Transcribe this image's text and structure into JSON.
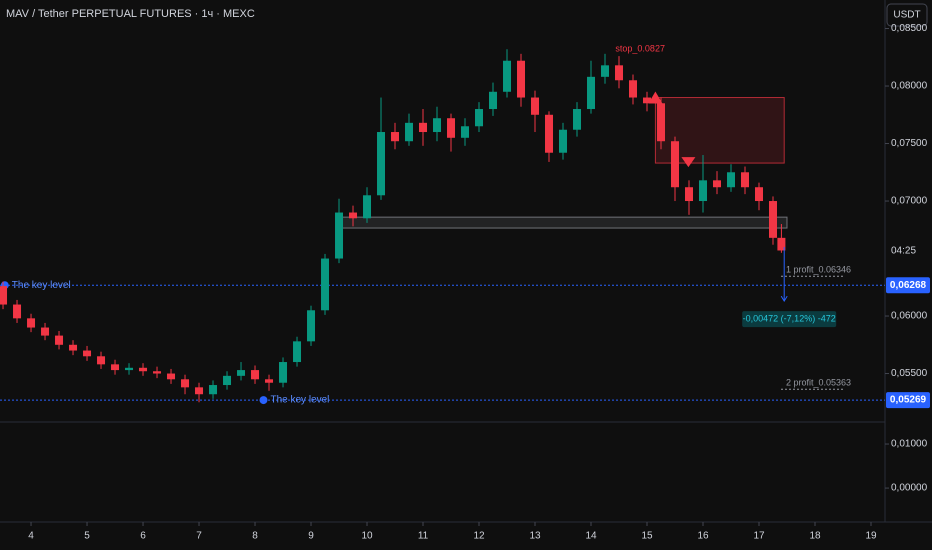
{
  "chart_data": {
    "type": "candlestick",
    "title": "MAV / Tether PERPETUAL FUTURES · 1ч · MEXC",
    "currency_button": "USDT",
    "countdown": "04:25",
    "up_color": "#089981",
    "down_color": "#f23645",
    "x": [
      3.5,
      3.75,
      4,
      4.25,
      4.5,
      4.75,
      5,
      5.25,
      5.5,
      5.75,
      6,
      6.25,
      6.5,
      6.75,
      7,
      7.25,
      7.5,
      7.75,
      8,
      8.25,
      8.5,
      8.75,
      9,
      9.25,
      9.5,
      9.75,
      10,
      10.25,
      10.5,
      10.75,
      11,
      11.25,
      11.5,
      11.75,
      12,
      12.25,
      12.5,
      12.75,
      13,
      13.25,
      13.5,
      13.75,
      14,
      14.25,
      14.5,
      14.75,
      15,
      15.25,
      15.5,
      15.75,
      16,
      16.25,
      16.5,
      16.75,
      17,
      17.25,
      17.4
    ],
    "open": [
      0.0626,
      0.061,
      0.0598,
      0.059,
      0.0583,
      0.0575,
      0.057,
      0.0565,
      0.0558,
      0.0553,
      0.0555,
      0.0552,
      0.055,
      0.0545,
      0.0538,
      0.0532,
      0.054,
      0.0548,
      0.0553,
      0.0545,
      0.0542,
      0.056,
      0.0578,
      0.0605,
      0.065,
      0.069,
      0.0685,
      0.0705,
      0.076,
      0.0752,
      0.0768,
      0.076,
      0.0772,
      0.0755,
      0.0765,
      0.078,
      0.0795,
      0.0822,
      0.079,
      0.0775,
      0.0742,
      0.0762,
      0.078,
      0.0808,
      0.0818,
      0.0805,
      0.079,
      0.0785,
      0.0752,
      0.0712,
      0.07,
      0.0718,
      0.0712,
      0.0725,
      0.0712,
      0.07,
      0.0668
    ],
    "high": [
      0.063,
      0.0614,
      0.0602,
      0.0594,
      0.0587,
      0.0579,
      0.0574,
      0.0569,
      0.0562,
      0.0559,
      0.0559,
      0.0556,
      0.0554,
      0.0549,
      0.0542,
      0.0544,
      0.0552,
      0.056,
      0.0557,
      0.0549,
      0.0564,
      0.0582,
      0.0609,
      0.0654,
      0.0702,
      0.0696,
      0.0712,
      0.079,
      0.0768,
      0.0776,
      0.078,
      0.0782,
      0.0776,
      0.0772,
      0.0786,
      0.0803,
      0.0832,
      0.0828,
      0.0796,
      0.0778,
      0.0768,
      0.0786,
      0.0822,
      0.0828,
      0.0826,
      0.081,
      0.0795,
      0.079,
      0.0756,
      0.0718,
      0.074,
      0.0726,
      0.0732,
      0.073,
      0.0716,
      0.0704,
      0.068
    ],
    "low": [
      0.0606,
      0.0594,
      0.0586,
      0.0579,
      0.0571,
      0.0566,
      0.0561,
      0.0554,
      0.0549,
      0.0549,
      0.0548,
      0.0546,
      0.0541,
      0.0532,
      0.0525,
      0.0528,
      0.0536,
      0.0544,
      0.0541,
      0.0535,
      0.0538,
      0.0556,
      0.0574,
      0.0601,
      0.0646,
      0.0678,
      0.0681,
      0.0701,
      0.0745,
      0.0748,
      0.0748,
      0.0752,
      0.0743,
      0.0748,
      0.076,
      0.0774,
      0.079,
      0.0782,
      0.076,
      0.0734,
      0.0736,
      0.0756,
      0.0776,
      0.0802,
      0.0798,
      0.0784,
      0.0778,
      0.0745,
      0.07,
      0.0688,
      0.069,
      0.0706,
      0.0708,
      0.0706,
      0.0692,
      0.0662,
      0.0655
    ],
    "close": [
      0.061,
      0.0598,
      0.059,
      0.0583,
      0.0575,
      0.057,
      0.0565,
      0.0558,
      0.0553,
      0.0555,
      0.0552,
      0.055,
      0.0545,
      0.0538,
      0.0532,
      0.054,
      0.0548,
      0.0553,
      0.0545,
      0.0542,
      0.056,
      0.0578,
      0.0605,
      0.065,
      0.069,
      0.0685,
      0.0705,
      0.076,
      0.0752,
      0.0768,
      0.076,
      0.0772,
      0.0755,
      0.0765,
      0.078,
      0.0795,
      0.0822,
      0.079,
      0.0775,
      0.0742,
      0.0762,
      0.078,
      0.0808,
      0.0818,
      0.0805,
      0.079,
      0.0785,
      0.0752,
      0.0712,
      0.07,
      0.0718,
      0.0712,
      0.0725,
      0.0712,
      0.07,
      0.0668,
      0.0657
    ],
    "xlim": [
      3.446,
      19.25
    ],
    "xticks": [
      4,
      5,
      6,
      7,
      8,
      9,
      10,
      11,
      12,
      13,
      14,
      15,
      16,
      17,
      18,
      19
    ],
    "ylim": [
      0.05096,
      0.08748
    ],
    "yticks": [
      {
        "value": 0.085,
        "label": "0,08500"
      },
      {
        "value": 0.08,
        "label": "0,08000"
      },
      {
        "value": 0.075,
        "label": "0,07500"
      },
      {
        "value": 0.07,
        "label": "0,07000"
      },
      {
        "value": 0.06,
        "label": "0,06000"
      },
      {
        "value": 0.055,
        "label": "0,05500"
      }
    ],
    "indicator_pane": {
      "ylim": [
        -0.0077,
        0.015
      ],
      "yticks": [
        {
          "value": 0.01,
          "label": "0,01000"
        },
        {
          "value": 0,
          "label": "0,00000"
        }
      ]
    },
    "key_levels": [
      {
        "value": 0.06268,
        "label": "0,06268",
        "text": "The key level",
        "x": 3.46,
        "color": "#2962ff"
      },
      {
        "value": 0.05269,
        "label": "0,05269",
        "text": "The key level",
        "x": 8.08,
        "color": "#2962ff"
      }
    ],
    "stop": {
      "value": 0.0827,
      "label": "stop_0.0827",
      "color": "#f23645"
    },
    "targets": [
      {
        "value": 0.06346,
        "label": "1 profit_0.06346"
      },
      {
        "value": 0.05363,
        "label": "2 profit_0.05363"
      }
    ],
    "zones": [
      {
        "y0": 0.0733,
        "y1": 0.079,
        "x0": 15.15,
        "x1": 17.45,
        "color": "#f23645"
      },
      {
        "y0": 0.06765,
        "y1": 0.0686,
        "x0": 9.5,
        "x1": 17.5,
        "color": "#9598a1"
      }
    ],
    "measure": {
      "text": "-0,00472 (-7,12%) -472",
      "from": 0.066,
      "to": 0.0613,
      "x": 17.45
    }
  }
}
